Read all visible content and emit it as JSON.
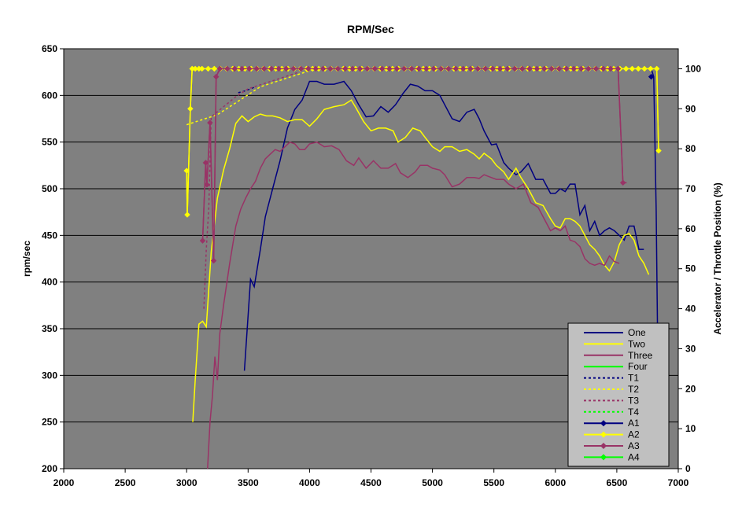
{
  "chart_data": {
    "type": "line",
    "title": "RPM/Sec",
    "xlabel": "",
    "ylabel": "rpm/sec",
    "y2label": "Accelerator / Throttle Position (%)",
    "xlim": [
      2000,
      7000
    ],
    "ylim": [
      200,
      650
    ],
    "y2lim": [
      0,
      105
    ],
    "x_ticks": [
      2000,
      2500,
      3000,
      3500,
      4000,
      4500,
      5000,
      5500,
      6000,
      6500,
      7000
    ],
    "y_ticks": [
      200,
      250,
      300,
      350,
      400,
      450,
      500,
      550,
      600,
      650
    ],
    "y2_ticks": [
      0,
      10,
      20,
      30,
      40,
      50,
      60,
      70,
      80,
      90,
      100
    ],
    "grid": true,
    "legend_position": "bottom-right",
    "colors": {
      "plot_bg": "#808080",
      "navy": "#000080",
      "yellow": "#FFFF00",
      "maroon": "#993366",
      "green": "#00FF00"
    },
    "series": [
      {
        "name": "One",
        "axis": "left",
        "color": "#000080",
        "style": "solid",
        "x": [
          3470,
          3520,
          3550,
          3600,
          3640,
          3700,
          3760,
          3820,
          3880,
          3940,
          4000,
          4060,
          4120,
          4200,
          4280,
          4340,
          4400,
          4460,
          4520,
          4580,
          4640,
          4700,
          4760,
          4820,
          4880,
          4940,
          5000,
          5060,
          5100,
          5160,
          5220,
          5280,
          5340,
          5380,
          5420,
          5480,
          5520,
          5580,
          5620,
          5680,
          5720,
          5780,
          5840,
          5900,
          5960,
          6000,
          6040,
          6080,
          6120,
          6160,
          6200,
          6240,
          6280,
          6320,
          6360,
          6400,
          6440,
          6480,
          6520,
          6560,
          6600,
          6640,
          6680,
          6720
        ],
        "y": [
          305,
          403,
          395,
          435,
          470,
          500,
          530,
          565,
          585,
          595,
          615,
          615,
          612,
          612,
          615,
          605,
          590,
          577,
          578,
          588,
          582,
          590,
          602,
          612,
          610,
          605,
          605,
          600,
          590,
          575,
          572,
          582,
          585,
          575,
          562,
          547,
          548,
          528,
          522,
          515,
          518,
          527,
          510,
          510,
          495,
          495,
          500,
          497,
          505,
          505,
          472,
          482,
          455,
          465,
          450,
          455,
          458,
          455,
          450,
          445,
          460,
          460,
          435,
          435
        ]
      },
      {
        "name": "Two",
        "axis": "left",
        "color": "#FFFF00",
        "style": "solid",
        "x": [
          3050,
          3070,
          3100,
          3130,
          3160,
          3200,
          3250,
          3300,
          3350,
          3400,
          3450,
          3500,
          3550,
          3600,
          3650,
          3700,
          3760,
          3820,
          3880,
          3940,
          4000,
          4060,
          4120,
          4200,
          4280,
          4340,
          4380,
          4440,
          4500,
          4560,
          4620,
          4680,
          4720,
          4780,
          4840,
          4900,
          4940,
          5000,
          5060,
          5100,
          5160,
          5220,
          5280,
          5340,
          5380,
          5420,
          5480,
          5520,
          5580,
          5620,
          5680,
          5720,
          5780,
          5840,
          5900,
          5960,
          6000,
          6040,
          6080,
          6120,
          6160,
          6200,
          6240,
          6280,
          6320,
          6360,
          6400,
          6440,
          6480,
          6520,
          6560,
          6600,
          6640,
          6680,
          6720,
          6760
        ],
        "y": [
          250,
          295,
          355,
          358,
          352,
          432,
          490,
          520,
          543,
          570,
          578,
          572,
          577,
          580,
          578,
          578,
          576,
          572,
          574,
          574,
          567,
          575,
          585,
          588,
          590,
          595,
          586,
          572,
          562,
          565,
          565,
          562,
          550,
          555,
          565,
          562,
          555,
          545,
          540,
          545,
          545,
          540,
          542,
          537,
          532,
          538,
          532,
          525,
          518,
          510,
          522,
          512,
          500,
          485,
          482,
          468,
          460,
          458,
          468,
          468,
          465,
          460,
          450,
          440,
          435,
          428,
          418,
          412,
          422,
          440,
          450,
          452,
          445,
          428,
          420,
          408
        ]
      },
      {
        "name": "Three",
        "axis": "left",
        "color": "#993366",
        "style": "solid",
        "x": [
          3170,
          3190,
          3210,
          3230,
          3250,
          3270,
          3300,
          3350,
          3400,
          3440,
          3480,
          3520,
          3560,
          3600,
          3640,
          3680,
          3720,
          3760,
          3800,
          3840,
          3880,
          3920,
          3960,
          4000,
          4060,
          4120,
          4180,
          4240,
          4300,
          4360,
          4400,
          4460,
          4520,
          4580,
          4640,
          4700,
          4740,
          4800,
          4860,
          4900,
          4960,
          5000,
          5060,
          5100,
          5160,
          5220,
          5280,
          5340,
          5380,
          5420,
          5480,
          5520,
          5580,
          5620,
          5680,
          5740,
          5800,
          5860,
          5900,
          5960,
          6000,
          6040,
          6080,
          6120,
          6160,
          6200,
          6240,
          6280,
          6320,
          6360,
          6400,
          6440,
          6480,
          6520
        ],
        "y": [
          200,
          250,
          278,
          320,
          295,
          345,
          375,
          420,
          460,
          478,
          490,
          500,
          508,
          522,
          532,
          537,
          542,
          540,
          545,
          550,
          548,
          542,
          542,
          548,
          550,
          545,
          546,
          542,
          530,
          525,
          533,
          522,
          530,
          522,
          522,
          527,
          517,
          512,
          518,
          525,
          525,
          522,
          520,
          515,
          502,
          505,
          512,
          512,
          511,
          515,
          512,
          510,
          510,
          505,
          500,
          505,
          485,
          480,
          470,
          455,
          458,
          455,
          460,
          445,
          443,
          438,
          425,
          420,
          418,
          420,
          418,
          428,
          422,
          420
        ]
      },
      {
        "name": "Four",
        "axis": "left",
        "color": "#00FF00",
        "style": "solid",
        "x": [],
        "y": []
      },
      {
        "name": "T1",
        "axis": "right",
        "color": "#000080",
        "style": "dashed",
        "x": [
          3420,
          3480,
          3520,
          3560
        ],
        "y": [
          94,
          94.5,
          95,
          95.5
        ]
      },
      {
        "name": "T2",
        "axis": "right",
        "color": "#FFFF00",
        "style": "dashed",
        "x": [
          3000,
          3050,
          3100,
          3150,
          3200,
          3250,
          3300,
          3350,
          3400,
          3450,
          3500,
          3550,
          3600,
          3650,
          3700,
          3750,
          3800,
          3850,
          3900,
          3950,
          4000,
          4050,
          4100,
          4150,
          4200
        ],
        "y": [
          86,
          86.5,
          87,
          87.5,
          88,
          88.5,
          89.5,
          90.5,
          91.5,
          92.5,
          93.5,
          94.5,
          95.5,
          96,
          96.5,
          97,
          97.5,
          98,
          98.5,
          99,
          99.5,
          100,
          100,
          100,
          100
        ]
      },
      {
        "name": "T3",
        "axis": "right",
        "color": "#993366",
        "style": "dashed",
        "x": [
          3140,
          3160,
          3180,
          3200,
          3240,
          3280,
          3320,
          3400,
          3500,
          3600,
          3700,
          3800,
          3900
        ],
        "y": [
          40,
          55,
          65,
          88,
          89,
          90,
          91,
          93,
          95,
          96,
          97,
          98,
          99
        ]
      },
      {
        "name": "T4",
        "axis": "right",
        "color": "#00FF00",
        "style": "dashed",
        "x": [],
        "y": []
      },
      {
        "name": "A1",
        "axis": "right",
        "color": "#000080",
        "style": "markers",
        "x": [
          6780
        ],
        "y": [
          98
        ]
      },
      {
        "name": "A2",
        "axis": "right",
        "color": "#FFFF00",
        "style": "markers",
        "x": [
          3000,
          3005,
          3030,
          3045,
          3070,
          3100,
          3125,
          3175,
          3225,
          3275,
          3325,
          3375,
          3425,
          3475,
          3525,
          3575,
          3625,
          3675,
          3725,
          3775,
          3825,
          3875,
          3925,
          3975,
          4025,
          4075,
          4125,
          4175,
          4225,
          4275,
          4325,
          4375,
          4425,
          4475,
          4525,
          4575,
          4625,
          4675,
          4725,
          4775,
          4825,
          4875,
          4925,
          4975,
          5025,
          5075,
          5125,
          5175,
          5225,
          5275,
          5325,
          5375,
          5425,
          5475,
          5525,
          5575,
          5625,
          5675,
          5725,
          5775,
          5825,
          5875,
          5925,
          5975,
          6025,
          6075,
          6125,
          6175,
          6225,
          6275,
          6325,
          6375,
          6425,
          6475,
          6525,
          6575,
          6625,
          6675,
          6725,
          6775,
          6825,
          6840
        ],
        "y": [
          74.5,
          63.5,
          90,
          100,
          100,
          100,
          100,
          100,
          100,
          100,
          100,
          100,
          100,
          100,
          100,
          100,
          100,
          100,
          100,
          100,
          100,
          100,
          100,
          100,
          100,
          100,
          100,
          100,
          100,
          100,
          100,
          100,
          100,
          100,
          100,
          100,
          100,
          100,
          100,
          100,
          100,
          100,
          100,
          100,
          100,
          100,
          100,
          100,
          100,
          100,
          100,
          100,
          100,
          100,
          100,
          100,
          100,
          100,
          100,
          100,
          100,
          100,
          100,
          100,
          100,
          100,
          100,
          100,
          100,
          100,
          100,
          100,
          100,
          100,
          100,
          100,
          100,
          100,
          100,
          100,
          100,
          79.5
        ]
      },
      {
        "name": "A3",
        "axis": "right",
        "color": "#993366",
        "style": "markers",
        "x": [
          3130,
          3155,
          3165,
          3190,
          3220,
          3240,
          3270,
          3330,
          3390,
          3450,
          3510,
          3570,
          3630,
          3690,
          3750,
          3810,
          3870,
          3930,
          3990,
          4050,
          4110,
          4170,
          4230,
          4290,
          4350,
          4410,
          4470,
          4530,
          4590,
          4650,
          4710,
          4770,
          4830,
          4890,
          4950,
          5010,
          5070,
          5130,
          5190,
          5250,
          5310,
          5370,
          5430,
          5490,
          5550,
          5610,
          5670,
          5730,
          5790,
          5850,
          5910,
          5970,
          6030,
          6090,
          6150,
          6210,
          6270,
          6330,
          6390,
          6450,
          6510,
          6550
        ],
        "y": [
          57,
          76.5,
          71,
          86.5,
          52,
          98,
          100,
          100,
          100,
          100,
          100,
          100,
          100,
          100,
          100,
          100,
          100,
          100,
          100,
          100,
          100,
          100,
          100,
          100,
          100,
          100,
          100,
          100,
          100,
          100,
          100,
          100,
          100,
          100,
          100,
          100,
          100,
          100,
          100,
          100,
          100,
          100,
          100,
          100,
          100,
          100,
          100,
          100,
          100,
          100,
          100,
          100,
          100,
          100,
          100,
          100,
          100,
          100,
          100,
          100,
          100,
          71.5
        ]
      },
      {
        "name": "A4",
        "axis": "right",
        "color": "#00FF00",
        "style": "markers",
        "x": [],
        "y": []
      }
    ],
    "extra_lines": [
      {
        "of": "A1",
        "axis": "right",
        "color": "#000080",
        "x": [
          6780,
          6800,
          6820,
          6840
        ],
        "y": [
          100,
          98,
          65,
          10
        ]
      },
      {
        "of": "A2",
        "axis": "right",
        "color": "#FFFF00",
        "x": [
          3000,
          3005,
          3030,
          3045
        ],
        "y": [
          74.5,
          63.5,
          90,
          100
        ]
      },
      {
        "of": "A2-end",
        "axis": "right",
        "color": "#FFFF00",
        "x": [
          6825,
          6840
        ],
        "y": [
          100,
          79.5
        ]
      },
      {
        "of": "A3",
        "axis": "right",
        "color": "#993366",
        "x": [
          3130,
          3155,
          3165,
          3190,
          3220,
          3240,
          3270,
          6510,
          6550,
          6580
        ],
        "y": [
          57,
          76.5,
          71,
          86.5,
          52,
          98,
          100,
          100,
          71.5,
          71.5
        ]
      }
    ]
  }
}
